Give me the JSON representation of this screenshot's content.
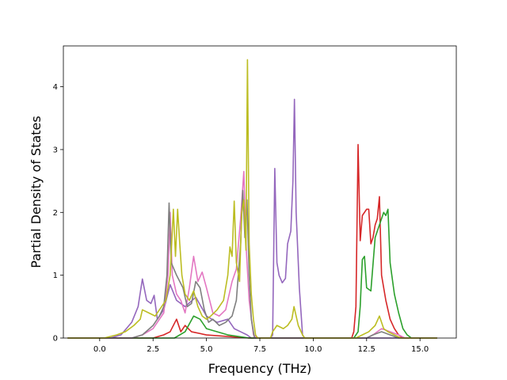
{
  "chart_data": {
    "type": "line",
    "title": "",
    "xlabel": "Frequency (THz)",
    "ylabel": "Partial Density of States",
    "xlim": [
      -1.7,
      16.7
    ],
    "ylim": [
      0,
      4.65
    ],
    "xticks": [
      0.0,
      2.5,
      5.0,
      7.5,
      10.0,
      12.5,
      15.0
    ],
    "xtick_labels": [
      "0.0",
      "2.5",
      "5.0",
      "7.5",
      "10.0",
      "12.5",
      "15.0"
    ],
    "yticks": [
      0,
      1,
      2,
      3,
      4
    ],
    "ytick_labels": [
      "0",
      "1",
      "2",
      "3",
      "4"
    ],
    "grid": false,
    "legend": "none",
    "series": [
      {
        "color": "#9467bd",
        "points": [
          [
            -1.5,
            0
          ],
          [
            0.5,
            0
          ],
          [
            1.0,
            0.05
          ],
          [
            1.5,
            0.25
          ],
          [
            1.8,
            0.5
          ],
          [
            2.0,
            0.94
          ],
          [
            2.2,
            0.6
          ],
          [
            2.4,
            0.55
          ],
          [
            2.55,
            0.68
          ],
          [
            2.7,
            0.3
          ],
          [
            3.0,
            0.45
          ],
          [
            3.3,
            0.85
          ],
          [
            3.6,
            0.6
          ],
          [
            4.0,
            0.5
          ],
          [
            4.5,
            0.65
          ],
          [
            5.0,
            0.35
          ],
          [
            5.5,
            0.25
          ],
          [
            6.0,
            0.3
          ],
          [
            6.3,
            0.15
          ],
          [
            6.6,
            0.1
          ],
          [
            6.9,
            0.05
          ],
          [
            7.1,
            0
          ],
          [
            8.0,
            0
          ],
          [
            8.1,
            0.05
          ],
          [
            8.2,
            2.7
          ],
          [
            8.3,
            1.2
          ],
          [
            8.4,
            1.0
          ],
          [
            8.55,
            0.88
          ],
          [
            8.7,
            0.95
          ],
          [
            8.8,
            1.5
          ],
          [
            8.95,
            1.7
          ],
          [
            9.05,
            2.5
          ],
          [
            9.12,
            3.8
          ],
          [
            9.2,
            2.0
          ],
          [
            9.35,
            0.8
          ],
          [
            9.5,
            0.05
          ],
          [
            9.6,
            0
          ],
          [
            15.8,
            0
          ]
        ]
      },
      {
        "color": "#d62728",
        "points": [
          [
            -1.5,
            0
          ],
          [
            2.5,
            0
          ],
          [
            3.0,
            0.05
          ],
          [
            3.3,
            0.1
          ],
          [
            3.6,
            0.3
          ],
          [
            3.8,
            0.1
          ],
          [
            4.0,
            0.2
          ],
          [
            4.3,
            0.1
          ],
          [
            5.0,
            0.05
          ],
          [
            7.0,
            0
          ],
          [
            11.8,
            0
          ],
          [
            11.9,
            0.1
          ],
          [
            12.0,
            0.5
          ],
          [
            12.1,
            3.08
          ],
          [
            12.2,
            1.55
          ],
          [
            12.3,
            1.95
          ],
          [
            12.5,
            2.05
          ],
          [
            12.6,
            2.05
          ],
          [
            12.7,
            1.5
          ],
          [
            12.8,
            1.6
          ],
          [
            12.9,
            1.8
          ],
          [
            13.0,
            1.9
          ],
          [
            13.1,
            2.25
          ],
          [
            13.2,
            1.0
          ],
          [
            13.4,
            0.6
          ],
          [
            13.6,
            0.3
          ],
          [
            13.8,
            0.15
          ],
          [
            14.0,
            0.05
          ],
          [
            14.2,
            0
          ],
          [
            15.8,
            0
          ]
        ]
      },
      {
        "color": "#2ca02c",
        "points": [
          [
            -1.5,
            0
          ],
          [
            3.5,
            0
          ],
          [
            4.0,
            0.1
          ],
          [
            4.4,
            0.35
          ],
          [
            4.7,
            0.3
          ],
          [
            5.0,
            0.15
          ],
          [
            6.0,
            0.05
          ],
          [
            7.0,
            0
          ],
          [
            11.9,
            0
          ],
          [
            12.1,
            0.1
          ],
          [
            12.2,
            0.5
          ],
          [
            12.3,
            1.25
          ],
          [
            12.4,
            1.3
          ],
          [
            12.5,
            0.8
          ],
          [
            12.7,
            0.75
          ],
          [
            12.9,
            1.6
          ],
          [
            13.1,
            1.8
          ],
          [
            13.3,
            2.0
          ],
          [
            13.4,
            1.95
          ],
          [
            13.5,
            2.05
          ],
          [
            13.6,
            1.2
          ],
          [
            13.8,
            0.7
          ],
          [
            14.0,
            0.4
          ],
          [
            14.2,
            0.15
          ],
          [
            14.4,
            0.05
          ],
          [
            14.6,
            0
          ],
          [
            15.8,
            0
          ]
        ]
      },
      {
        "color": "#e377c2",
        "points": [
          [
            -1.5,
            0
          ],
          [
            1.5,
            0
          ],
          [
            2.0,
            0.05
          ],
          [
            2.5,
            0.15
          ],
          [
            3.0,
            0.4
          ],
          [
            3.2,
            1.0
          ],
          [
            3.3,
            2.0
          ],
          [
            3.4,
            1.0
          ],
          [
            3.6,
            0.7
          ],
          [
            3.8,
            0.6
          ],
          [
            4.0,
            0.4
          ],
          [
            4.2,
            0.8
          ],
          [
            4.4,
            1.3
          ],
          [
            4.6,
            0.9
          ],
          [
            4.8,
            1.05
          ],
          [
            5.0,
            0.8
          ],
          [
            5.3,
            0.4
          ],
          [
            5.6,
            0.35
          ],
          [
            5.9,
            0.45
          ],
          [
            6.2,
            0.9
          ],
          [
            6.4,
            1.1
          ],
          [
            6.6,
            1.9
          ],
          [
            6.75,
            2.65
          ],
          [
            6.85,
            1.5
          ],
          [
            7.0,
            0.6
          ],
          [
            7.2,
            0.05
          ],
          [
            7.4,
            0
          ],
          [
            12.5,
            0
          ],
          [
            12.8,
            0.05
          ],
          [
            13.2,
            0.15
          ],
          [
            13.6,
            0.1
          ],
          [
            14.0,
            0.05
          ],
          [
            14.3,
            0
          ],
          [
            15.8,
            0
          ]
        ]
      },
      {
        "color": "#7f7f7f",
        "points": [
          [
            -1.5,
            0
          ],
          [
            1.5,
            0
          ],
          [
            2.0,
            0.05
          ],
          [
            2.5,
            0.2
          ],
          [
            2.8,
            0.35
          ],
          [
            3.0,
            0.5
          ],
          [
            3.15,
            1.0
          ],
          [
            3.25,
            2.15
          ],
          [
            3.35,
            1.2
          ],
          [
            3.6,
            1.0
          ],
          [
            3.9,
            0.8
          ],
          [
            4.1,
            0.5
          ],
          [
            4.3,
            0.55
          ],
          [
            4.5,
            0.9
          ],
          [
            4.7,
            0.8
          ],
          [
            4.9,
            0.45
          ],
          [
            5.1,
            0.25
          ],
          [
            5.3,
            0.3
          ],
          [
            5.6,
            0.2
          ],
          [
            5.9,
            0.25
          ],
          [
            6.2,
            0.35
          ],
          [
            6.4,
            0.6
          ],
          [
            6.6,
            1.5
          ],
          [
            6.7,
            2.35
          ],
          [
            6.8,
            1.6
          ],
          [
            6.9,
            2.2
          ],
          [
            7.0,
            1.0
          ],
          [
            7.1,
            0.3
          ],
          [
            7.25,
            0
          ],
          [
            12.5,
            0
          ],
          [
            12.8,
            0.05
          ],
          [
            13.2,
            0.1
          ],
          [
            13.6,
            0.05
          ],
          [
            14.0,
            0
          ],
          [
            15.8,
            0
          ]
        ]
      },
      {
        "color": "#bcbd22",
        "points": [
          [
            -1.5,
            0
          ],
          [
            0.2,
            0
          ],
          [
            0.8,
            0.05
          ],
          [
            1.2,
            0.1
          ],
          [
            1.6,
            0.2
          ],
          [
            1.9,
            0.3
          ],
          [
            2.0,
            0.45
          ],
          [
            2.3,
            0.4
          ],
          [
            2.6,
            0.35
          ],
          [
            2.9,
            0.5
          ],
          [
            3.1,
            0.6
          ],
          [
            3.3,
            1.0
          ],
          [
            3.45,
            2.05
          ],
          [
            3.55,
            1.3
          ],
          [
            3.65,
            2.05
          ],
          [
            3.75,
            1.5
          ],
          [
            3.85,
            1.0
          ],
          [
            4.0,
            0.7
          ],
          [
            4.2,
            0.6
          ],
          [
            4.4,
            0.75
          ],
          [
            4.6,
            0.5
          ],
          [
            4.8,
            0.35
          ],
          [
            5.0,
            0.3
          ],
          [
            5.2,
            0.35
          ],
          [
            5.5,
            0.45
          ],
          [
            5.8,
            0.6
          ],
          [
            6.0,
            1.0
          ],
          [
            6.1,
            1.45
          ],
          [
            6.2,
            1.3
          ],
          [
            6.3,
            2.18
          ],
          [
            6.4,
            1.2
          ],
          [
            6.55,
            0.9
          ],
          [
            6.65,
            2.0
          ],
          [
            6.75,
            2.2
          ],
          [
            6.85,
            1.4
          ],
          [
            6.92,
            4.43
          ],
          [
            7.0,
            1.5
          ],
          [
            7.1,
            0.7
          ],
          [
            7.2,
            0.3
          ],
          [
            7.3,
            0.05
          ],
          [
            7.4,
            0
          ],
          [
            8.0,
            0
          ],
          [
            8.1,
            0.1
          ],
          [
            8.3,
            0.2
          ],
          [
            8.6,
            0.15
          ],
          [
            8.8,
            0.2
          ],
          [
            9.0,
            0.3
          ],
          [
            9.1,
            0.5
          ],
          [
            9.2,
            0.35
          ],
          [
            9.3,
            0.2
          ],
          [
            9.5,
            0.05
          ],
          [
            9.6,
            0
          ],
          [
            12.0,
            0
          ],
          [
            12.3,
            0.05
          ],
          [
            12.6,
            0.1
          ],
          [
            12.9,
            0.2
          ],
          [
            13.1,
            0.35
          ],
          [
            13.3,
            0.15
          ],
          [
            13.5,
            0.1
          ],
          [
            13.8,
            0.05
          ],
          [
            14.1,
            0
          ],
          [
            15.8,
            0
          ]
        ]
      }
    ]
  }
}
